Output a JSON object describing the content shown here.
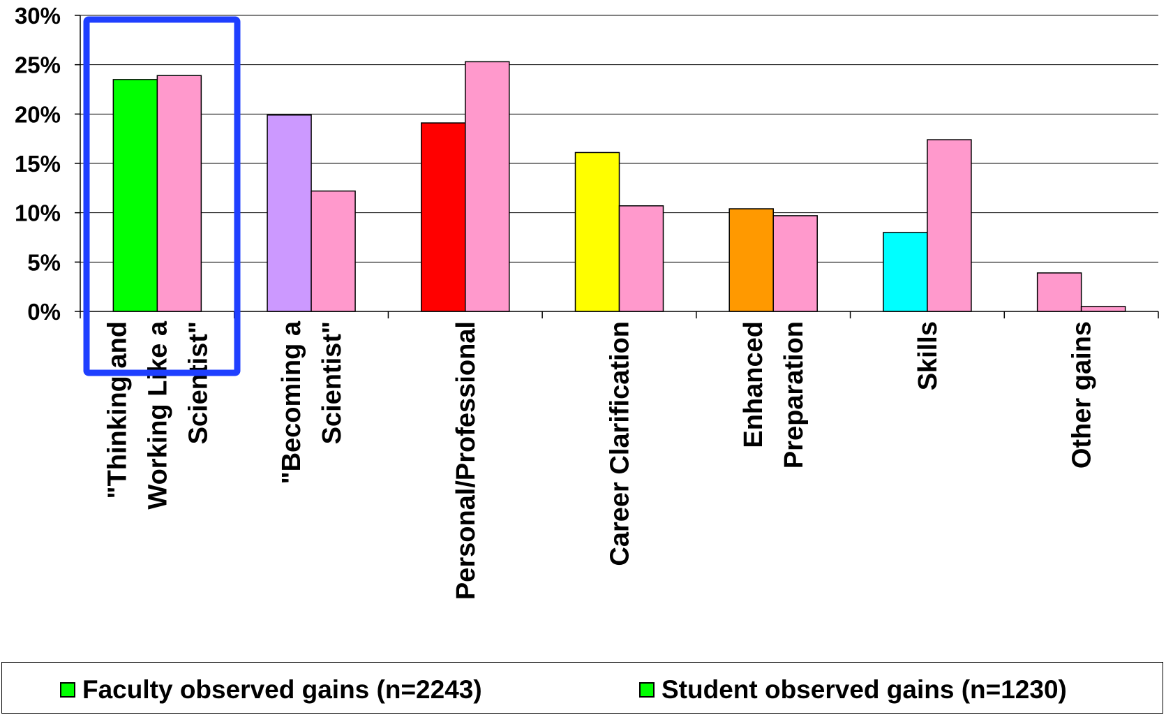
{
  "chart_data": {
    "type": "bar",
    "categories": [
      [
        "\"Thinking and",
        "Working Like a",
        "Scientist\""
      ],
      [
        "\"Becoming a",
        "Scientist\""
      ],
      [
        "Personal/Professional"
      ],
      [
        "Career Clarification"
      ],
      [
        "Enhanced",
        "Preparation"
      ],
      [
        "Skills"
      ],
      [
        "Other gains"
      ]
    ],
    "series": [
      {
        "name": "Faculty observed gains (n=2243)",
        "values": [
          23.5,
          19.9,
          19.1,
          16.1,
          10.4,
          8.0,
          3.9
        ]
      },
      {
        "name": "Student observed gains (n=1230)",
        "values": [
          23.9,
          12.2,
          25.3,
          10.7,
          9.7,
          17.4,
          0.5
        ]
      }
    ],
    "series_colors": {
      "faculty_per_category": [
        "#00ff00",
        "#cc99ff",
        "#ff0000",
        "#ffff00",
        "#ff9900",
        "#00ffff",
        "#ff99cc"
      ],
      "student": "#ff99cc"
    },
    "yticks": [
      "0%",
      "5%",
      "10%",
      "15%",
      "20%",
      "25%",
      "30%"
    ],
    "ylim": [
      0,
      30
    ],
    "grid": true,
    "legend_position": "bottom",
    "highlight": {
      "category_index": 0,
      "color": "#1f3fff"
    }
  },
  "legend": {
    "faculty_label": "Faculty observed gains (n=2243)",
    "student_label": "Student observed gains (n=1230)",
    "swatch_color": "#00ff00"
  }
}
